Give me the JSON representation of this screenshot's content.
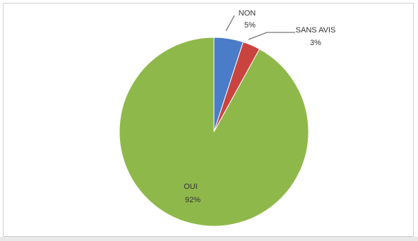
{
  "chart_data": {
    "type": "pie",
    "title": "",
    "legend": "none",
    "start_angle_deg": 0,
    "direction": "clockwise",
    "slices": [
      {
        "label": "NON",
        "value": 5,
        "value_label": "5%",
        "color": "#4a7cc7"
      },
      {
        "label": "SANS AVIS",
        "value": 3,
        "value_label": "3%",
        "color": "#c9443f"
      },
      {
        "label": "OUI",
        "value": 92,
        "value_label": "92%",
        "color": "#8fb84a"
      }
    ]
  }
}
